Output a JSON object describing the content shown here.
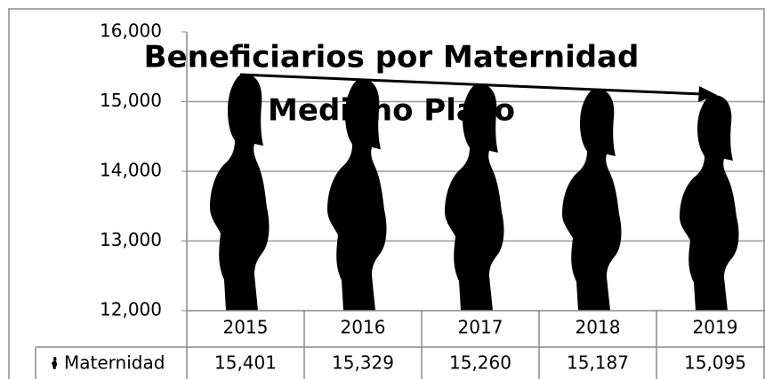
{
  "chart_data": {
    "type": "pictograph",
    "title": "Beneficiarios por Maternidad",
    "subtitle": "Mediano Plazo",
    "categories": [
      "2015",
      "2016",
      "2017",
      "2018",
      "2019"
    ],
    "series": [
      {
        "name": "Maternidad",
        "color": "#000000",
        "values": [
          15401,
          15329,
          15260,
          15187,
          15095
        ],
        "value_labels": [
          "15,401",
          "15,329",
          "15,260",
          "15,187",
          "15,095"
        ]
      }
    ],
    "ylim": [
      12000,
      16000
    ],
    "yticks": [
      {
        "value": 12000,
        "label": "12,000"
      },
      {
        "value": 13000,
        "label": "13,000"
      },
      {
        "value": 14000,
        "label": "14,000"
      },
      {
        "value": 15000,
        "label": "15,000"
      },
      {
        "value": 16000,
        "label": "16,000"
      }
    ],
    "grid": true
  }
}
